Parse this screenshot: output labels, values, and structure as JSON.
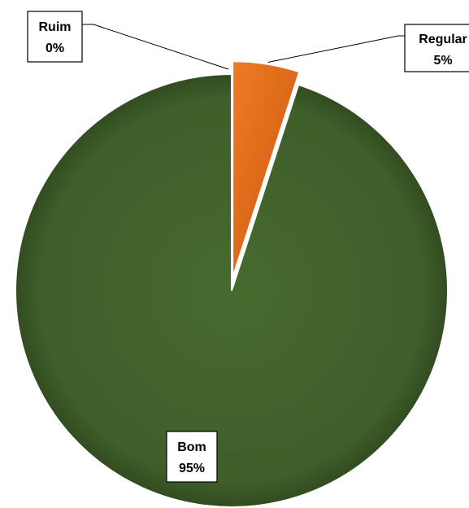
{
  "chart_data": {
    "type": "pie",
    "title": "",
    "categories": [
      "Ruim",
      "Regular",
      "Bom"
    ],
    "values": [
      0,
      5,
      95
    ],
    "labels": [
      {
        "category": "Ruim",
        "percent": "0%"
      },
      {
        "category": "Regular",
        "percent": "5%"
      },
      {
        "category": "Bom",
        "percent": "95%"
      }
    ],
    "colors": {
      "Ruim": "#c0504d",
      "Regular": "#e36c1a",
      "Bom": "#3f5f2a"
    },
    "legend": "none",
    "exploded": "Regular"
  }
}
